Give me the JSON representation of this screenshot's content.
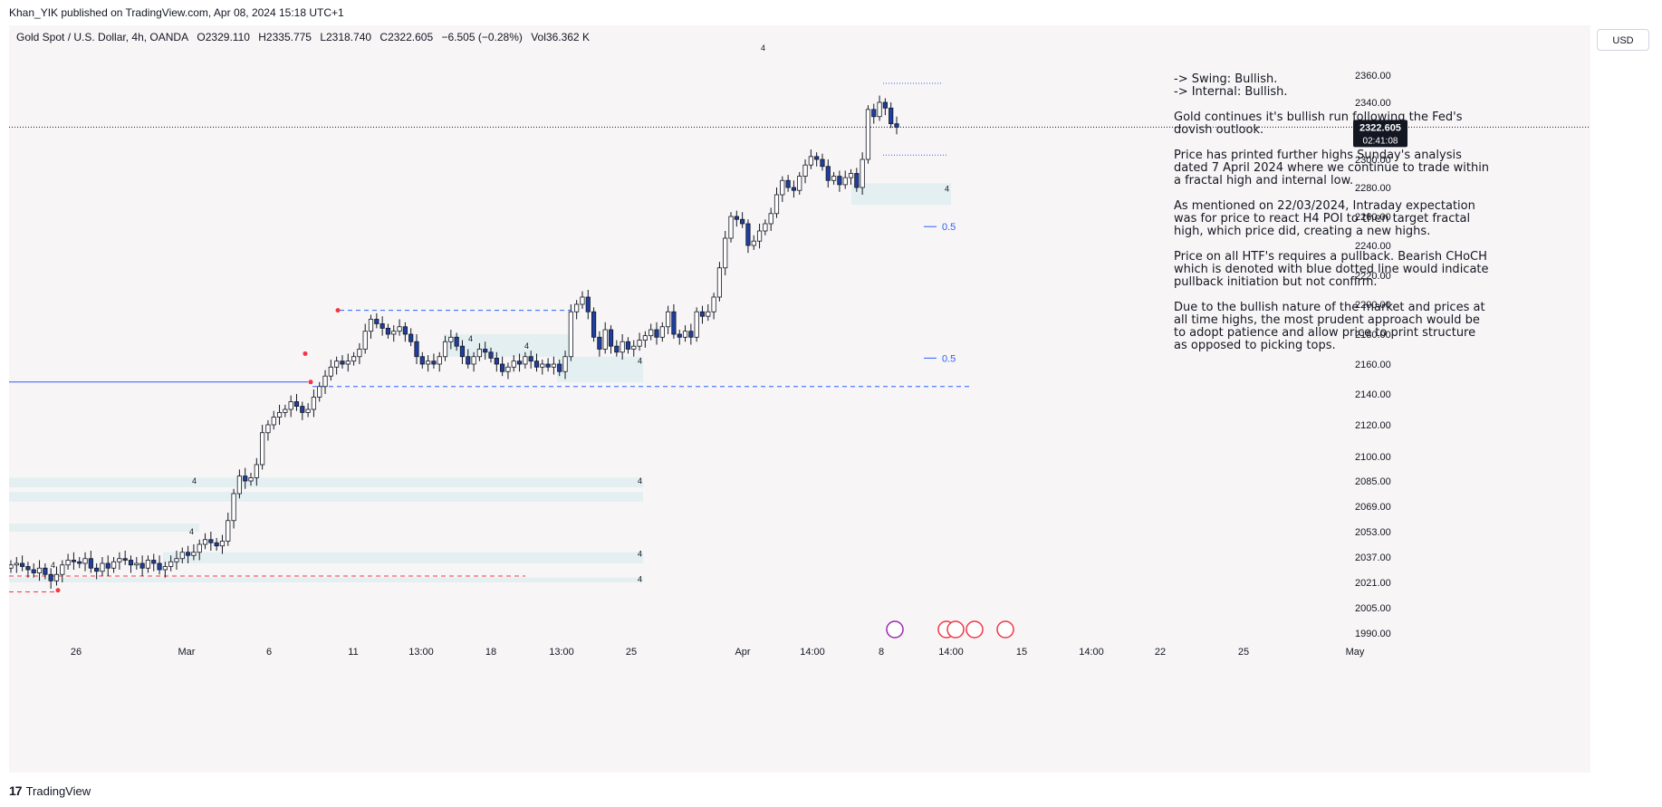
{
  "header": {
    "published": "Khan_YIK published on TradingView.com, Apr 08, 2024 15:18 UTC+1"
  },
  "legend": {
    "symbol": "Gold Spot / U.S. Dollar, 4h, OANDA",
    "open": "O2329.110",
    "high": "H2335.775",
    "low": "L2318.740",
    "close": "C2322.605",
    "change": "−6.505 (−0.28%)",
    "volume": "Vol36.362 K"
  },
  "currency_button": "USD",
  "price_tag": {
    "price": "2322.605",
    "countdown": "02:41:08"
  },
  "analysis": {
    "swing": "-> Swing:  Bullish.",
    "internal": "-> Internal:  Bullish.",
    "p1": "Gold continues it's bullish run following the Fed's dovish outlook.",
    "p2": "Price has printed further highs Sunday's analysis dated 7 April 2024 where we continue to trade within a fractal high and internal low.",
    "p3": "As mentioned on 22/03/2024, Intraday expectation was for price to react H4 POI to then target fractal high, which price did, creating a new highs.",
    "p4": "Price on all HTF's requires a pullback.  Bearish CHoCH which is denoted with blue dotted line would indicate pullback initiation but not confirm.",
    "p5": "Due to the bullish nature of the market and prices at all time highs, the most prudent approach would be to adopt patience and allow price to print structure as opposed to picking tops."
  },
  "footer": {
    "brand": "TradingView"
  },
  "colors": {
    "bull": "#ffffff",
    "bear": "#1e3fa0",
    "wick": "#131722",
    "zone": "#e3eff1",
    "blue_line": "#2962ff",
    "red_line": "#f23645"
  },
  "chart_data": {
    "type": "candlestick",
    "timeframe": "4h",
    "last_price": 2322.605,
    "y_ticks": [
      2360,
      2340,
      2320,
      2300,
      2280,
      2260,
      2240,
      2220,
      2200,
      2180,
      2160,
      2140,
      2120,
      2100,
      2085,
      2069,
      2053,
      2037,
      2021,
      2005,
      1990
    ],
    "x_ticks": [
      "26",
      "Mar",
      "6",
      "11",
      "13:00",
      "18",
      "13:00",
      "25",
      "Apr",
      "14:00",
      "8",
      "14:00",
      "15",
      "14:00",
      "22",
      "25",
      "May"
    ],
    "fib_labels": [
      {
        "label": "0.5",
        "price": 2253
      },
      {
        "label": "0.5",
        "price": 2164
      }
    ],
    "zone_labels": [
      "4",
      "4",
      "4",
      "4",
      "4",
      "4",
      "4",
      "4",
      "4",
      "4",
      "4"
    ],
    "levels": [
      {
        "price": 2322.6,
        "style": "dotted",
        "color": "black"
      },
      {
        "price": 2354,
        "style": "dotted",
        "color": "blue"
      },
      {
        "price": 2303,
        "style": "dotted",
        "color": "blue"
      },
      {
        "price": 2196,
        "style": "dashed",
        "color": "blue"
      },
      {
        "price": 2145,
        "style": "dashed",
        "color": "blue"
      },
      {
        "price": 2148,
        "style": "solid",
        "color": "blue"
      },
      {
        "price": 2025,
        "style": "dashed",
        "color": "red"
      },
      {
        "price": 2015,
        "style": "dashed",
        "color": "red"
      }
    ],
    "zones": [
      {
        "top": 2283,
        "bottom": 2268
      },
      {
        "top": 2165,
        "bottom": 2148
      },
      {
        "top": 2180,
        "bottom": 2165
      },
      {
        "top": 2087,
        "bottom": 2081
      },
      {
        "top": 2078,
        "bottom": 2072
      },
      {
        "top": 2058,
        "bottom": 2053
      },
      {
        "top": 2040,
        "bottom": 2033
      },
      {
        "top": 2024,
        "bottom": 2021
      }
    ],
    "candles_close_path": [
      2032,
      2033,
      2031,
      2029,
      2027,
      2030,
      2026,
      2022,
      2026,
      2032,
      2035,
      2034,
      2033,
      2036,
      2030,
      2028,
      2033,
      2030,
      2034,
      2036,
      2035,
      2032,
      2033,
      2030,
      2035,
      2033,
      2029,
      2031,
      2034,
      2036,
      2040,
      2038,
      2040,
      2045,
      2048,
      2046,
      2044,
      2047,
      2060,
      2077,
      2088,
      2085,
      2087,
      2095,
      2115,
      2120,
      2125,
      2128,
      2130,
      2135,
      2132,
      2128,
      2130,
      2138,
      2145,
      2152,
      2158,
      2162,
      2160,
      2162,
      2165,
      2170,
      2182,
      2190,
      2187,
      2184,
      2180,
      2182,
      2185,
      2180,
      2175,
      2165,
      2160,
      2162,
      2160,
      2165,
      2175,
      2178,
      2172,
      2165,
      2160,
      2165,
      2170,
      2168,
      2164,
      2160,
      2155,
      2158,
      2162,
      2160,
      2165,
      2162,
      2158,
      2160,
      2158,
      2160,
      2155,
      2165,
      2195,
      2200,
      2205,
      2195,
      2178,
      2170,
      2183,
      2172,
      2168,
      2175,
      2170,
      2172,
      2176,
      2179,
      2183,
      2178,
      2185,
      2195,
      2180,
      2178,
      2182,
      2178,
      2195,
      2192,
      2195,
      2205,
      2225,
      2245,
      2260,
      2258,
      2255,
      2240,
      2243,
      2250,
      2255,
      2262,
      2275,
      2285,
      2280,
      2278,
      2288,
      2296,
      2302,
      2300,
      2295,
      2285,
      2288,
      2282,
      2287,
      2290,
      2280,
      2300,
      2335,
      2330,
      2340,
      2336,
      2325,
      2322.6
    ]
  }
}
